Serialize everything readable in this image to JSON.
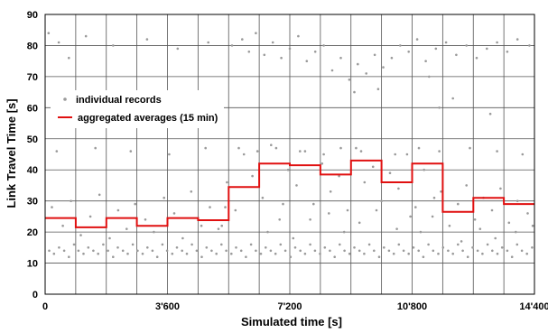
{
  "chart_data": {
    "type": "scatter",
    "xlabel": "Simulated time [s]",
    "ylabel": "Link Travel Time [s]",
    "xlim": [
      0,
      14400
    ],
    "ylim": [
      0,
      90
    ],
    "x_ticks": [
      {
        "value": 0,
        "label": "0"
      },
      {
        "value": 3600,
        "label": "3'600"
      },
      {
        "value": 7200,
        "label": "7'200"
      },
      {
        "value": 10800,
        "label": "10'800"
      },
      {
        "value": 14400,
        "label": "14'400"
      }
    ],
    "y_ticks": [
      0,
      10,
      20,
      30,
      40,
      50,
      60,
      70,
      80,
      90
    ],
    "grid": true,
    "x_gridline_step": 900,
    "y_gridline_step": 10,
    "legend": {
      "position": "left",
      "entries": [
        {
          "label": "individual records",
          "marker": "dot",
          "color": "#9a9a9a"
        },
        {
          "label": "aggregated averages (15 min)",
          "marker": "line",
          "color": "#e01010"
        }
      ]
    },
    "series": [
      {
        "name": "aggregated averages (15 min)",
        "type": "step",
        "color": "#e01010",
        "intervals": [
          {
            "x_start": 0,
            "x_end": 900,
            "y": 24.5
          },
          {
            "x_start": 900,
            "x_end": 1800,
            "y": 21.5
          },
          {
            "x_start": 1800,
            "x_end": 2700,
            "y": 24.5
          },
          {
            "x_start": 2700,
            "x_end": 3600,
            "y": 22.0
          },
          {
            "x_start": 3600,
            "x_end": 4500,
            "y": 24.5
          },
          {
            "x_start": 4500,
            "x_end": 5400,
            "y": 23.8
          },
          {
            "x_start": 5400,
            "x_end": 6300,
            "y": 34.5
          },
          {
            "x_start": 6300,
            "x_end": 7200,
            "y": 42.0
          },
          {
            "x_start": 7200,
            "x_end": 8100,
            "y": 41.5
          },
          {
            "x_start": 8100,
            "x_end": 9000,
            "y": 38.5
          },
          {
            "x_start": 9000,
            "x_end": 9900,
            "y": 43.0
          },
          {
            "x_start": 9900,
            "x_end": 10800,
            "y": 36.0
          },
          {
            "x_start": 10800,
            "x_end": 11700,
            "y": 42.0
          },
          {
            "x_start": 11700,
            "x_end": 12600,
            "y": 26.5
          },
          {
            "x_start": 12600,
            "x_end": 13500,
            "y": 31.0
          },
          {
            "x_start": 13500,
            "x_end": 14400,
            "y": 29.0
          }
        ]
      },
      {
        "name": "individual records",
        "type": "scatter",
        "color": "#9a9a9a",
        "points": [
          [
            120,
            14
          ],
          [
            260,
            13
          ],
          [
            410,
            15
          ],
          [
            560,
            14
          ],
          [
            700,
            12
          ],
          [
            850,
            16
          ],
          [
            980,
            14
          ],
          [
            1130,
            13
          ],
          [
            1270,
            15
          ],
          [
            1420,
            14
          ],
          [
            1560,
            13
          ],
          [
            1710,
            16
          ],
          [
            1850,
            14
          ],
          [
            2000,
            12
          ],
          [
            2140,
            15
          ],
          [
            2290,
            14
          ],
          [
            2430,
            13
          ],
          [
            2580,
            16
          ],
          [
            2720,
            14
          ],
          [
            2870,
            13
          ],
          [
            3010,
            15
          ],
          [
            3160,
            14
          ],
          [
            3300,
            12
          ],
          [
            3450,
            16
          ],
          [
            3590,
            14
          ],
          [
            3740,
            13
          ],
          [
            3880,
            15
          ],
          [
            4030,
            14
          ],
          [
            4170,
            13
          ],
          [
            4320,
            16
          ],
          [
            4460,
            14
          ],
          [
            4610,
            12
          ],
          [
            4750,
            15
          ],
          [
            4900,
            14
          ],
          [
            5040,
            13
          ],
          [
            5190,
            16
          ],
          [
            5330,
            14
          ],
          [
            5480,
            13
          ],
          [
            5620,
            15
          ],
          [
            5770,
            14
          ],
          [
            5910,
            12
          ],
          [
            6060,
            16
          ],
          [
            6200,
            14
          ],
          [
            6350,
            13
          ],
          [
            6490,
            15
          ],
          [
            6640,
            14
          ],
          [
            6780,
            13
          ],
          [
            6930,
            16
          ],
          [
            7070,
            14
          ],
          [
            7220,
            12
          ],
          [
            7360,
            15
          ],
          [
            7510,
            14
          ],
          [
            7650,
            13
          ],
          [
            7800,
            16
          ],
          [
            7940,
            14
          ],
          [
            8090,
            13
          ],
          [
            8230,
            15
          ],
          [
            8380,
            14
          ],
          [
            8520,
            12
          ],
          [
            8670,
            16
          ],
          [
            8810,
            14
          ],
          [
            8960,
            13
          ],
          [
            9100,
            15
          ],
          [
            9250,
            14
          ],
          [
            9390,
            13
          ],
          [
            9540,
            16
          ],
          [
            9680,
            14
          ],
          [
            9830,
            12
          ],
          [
            9970,
            15
          ],
          [
            10120,
            14
          ],
          [
            10260,
            13
          ],
          [
            10410,
            16
          ],
          [
            10550,
            14
          ],
          [
            10700,
            13
          ],
          [
            10840,
            15
          ],
          [
            10990,
            14
          ],
          [
            11130,
            12
          ],
          [
            11280,
            16
          ],
          [
            11420,
            14
          ],
          [
            11570,
            13
          ],
          [
            11710,
            15
          ],
          [
            11860,
            14
          ],
          [
            12000,
            13
          ],
          [
            12150,
            16
          ],
          [
            12290,
            14
          ],
          [
            12440,
            12
          ],
          [
            12580,
            15
          ],
          [
            12730,
            14
          ],
          [
            12870,
            13
          ],
          [
            13020,
            16
          ],
          [
            13160,
            14
          ],
          [
            13310,
            13
          ],
          [
            13450,
            15
          ],
          [
            13600,
            14
          ],
          [
            13740,
            12
          ],
          [
            13890,
            16
          ],
          [
            14030,
            14
          ],
          [
            14180,
            13
          ],
          [
            14330,
            15
          ],
          [
            200,
            28
          ],
          [
            520,
            22
          ],
          [
            760,
            30
          ],
          [
            1050,
            19
          ],
          [
            1330,
            25
          ],
          [
            1600,
            32
          ],
          [
            1900,
            18
          ],
          [
            2150,
            27
          ],
          [
            2400,
            21
          ],
          [
            2650,
            29
          ],
          [
            2950,
            24
          ],
          [
            3200,
            20
          ],
          [
            3500,
            31
          ],
          [
            3800,
            26
          ],
          [
            4050,
            18
          ],
          [
            4300,
            33
          ],
          [
            4600,
            22
          ],
          [
            4850,
            28
          ],
          [
            5100,
            21
          ],
          [
            5350,
            36
          ],
          [
            5600,
            27
          ],
          [
            5850,
            45
          ],
          [
            6100,
            38
          ],
          [
            6400,
            31
          ],
          [
            6650,
            48
          ],
          [
            6900,
            24
          ],
          [
            7150,
            40
          ],
          [
            7400,
            35
          ],
          [
            7650,
            46
          ],
          [
            7900,
            29
          ],
          [
            8150,
            42
          ],
          [
            8400,
            33
          ],
          [
            8650,
            38
          ],
          [
            8900,
            27
          ],
          [
            9150,
            47
          ],
          [
            9400,
            36
          ],
          [
            9650,
            41
          ],
          [
            9900,
            30
          ],
          [
            10150,
            39
          ],
          [
            10400,
            34
          ],
          [
            10650,
            45
          ],
          [
            10900,
            28
          ],
          [
            11150,
            40
          ],
          [
            11400,
            25
          ],
          [
            11650,
            33
          ],
          [
            11900,
            22
          ],
          [
            12150,
            29
          ],
          [
            12400,
            35
          ],
          [
            12650,
            24
          ],
          [
            12900,
            31
          ],
          [
            13150,
            27
          ],
          [
            13400,
            34
          ],
          [
            13650,
            23
          ],
          [
            13900,
            30
          ],
          [
            14200,
            26
          ],
          [
            340,
            46
          ],
          [
            1480,
            47
          ],
          [
            2520,
            46
          ],
          [
            3650,
            45
          ],
          [
            4720,
            47
          ],
          [
            5700,
            47
          ],
          [
            6250,
            46
          ],
          [
            6800,
            47
          ],
          [
            7500,
            46
          ],
          [
            8200,
            45
          ],
          [
            8700,
            47
          ],
          [
            9300,
            46
          ],
          [
            10300,
            45
          ],
          [
            11000,
            47
          ],
          [
            11600,
            46
          ],
          [
            12500,
            47
          ],
          [
            13300,
            46
          ],
          [
            14050,
            45
          ],
          [
            5500,
            80
          ],
          [
            5800,
            82
          ],
          [
            6000,
            78
          ],
          [
            6200,
            84
          ],
          [
            6450,
            77
          ],
          [
            6700,
            81
          ],
          [
            6950,
            76
          ],
          [
            7200,
            79
          ],
          [
            7450,
            83
          ],
          [
            7700,
            75
          ],
          [
            7950,
            78
          ],
          [
            8200,
            80
          ],
          [
            8450,
            72
          ],
          [
            8700,
            76
          ],
          [
            8950,
            69
          ],
          [
            9200,
            74
          ],
          [
            9450,
            71
          ],
          [
            9700,
            77
          ],
          [
            9950,
            73
          ],
          [
            10200,
            76
          ],
          [
            10450,
            80
          ],
          [
            10700,
            78
          ],
          [
            10950,
            82
          ],
          [
            11200,
            75
          ],
          [
            11500,
            79
          ],
          [
            11800,
            81
          ],
          [
            12100,
            77
          ],
          [
            12400,
            80
          ],
          [
            12700,
            76
          ],
          [
            13000,
            79
          ],
          [
            13300,
            81
          ],
          [
            13600,
            78
          ],
          [
            13900,
            82
          ],
          [
            14250,
            80
          ],
          [
            100,
            84
          ],
          [
            400,
            81
          ],
          [
            700,
            76
          ],
          [
            1200,
            83
          ],
          [
            2000,
            80
          ],
          [
            3000,
            82
          ],
          [
            3900,
            79
          ],
          [
            4800,
            81
          ],
          [
            9100,
            65
          ],
          [
            9800,
            66
          ],
          [
            11300,
            70
          ],
          [
            11600,
            60
          ],
          [
            12000,
            63
          ],
          [
            13100,
            58
          ],
          [
            5200,
            22
          ],
          [
            5300,
            28
          ],
          [
            6550,
            20
          ],
          [
            7000,
            29
          ],
          [
            7300,
            18
          ],
          [
            7800,
            24
          ],
          [
            8350,
            26
          ],
          [
            8800,
            20
          ],
          [
            9250,
            23
          ],
          [
            9750,
            27
          ],
          [
            10350,
            21
          ],
          [
            10750,
            25
          ],
          [
            11050,
            20
          ],
          [
            11450,
            31
          ],
          [
            12250,
            17
          ],
          [
            12800,
            21
          ],
          [
            13250,
            18
          ],
          [
            13850,
            20
          ],
          [
            14350,
            22
          ]
        ]
      }
    ]
  }
}
